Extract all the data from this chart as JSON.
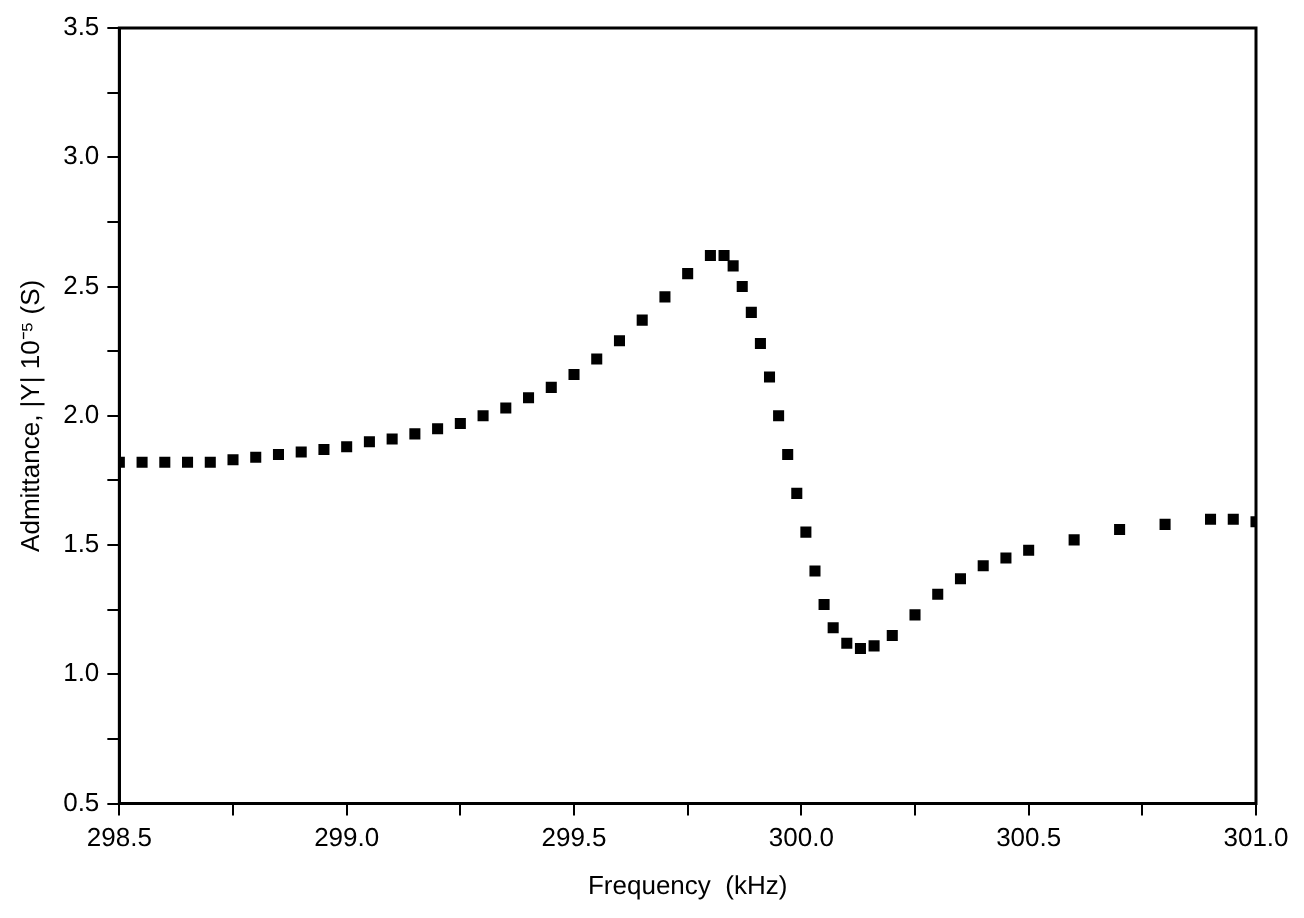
{
  "chart_data": {
    "type": "scatter",
    "xlabel": "Frequency  (kHz)",
    "ylabel": "Admittance, |Y| 10⁻⁵ (S)",
    "marker": "square",
    "grid": false,
    "legend": false,
    "series": [
      {
        "color": "#000000",
        "x": [
          298.5,
          298.55,
          298.6,
          298.65,
          298.7,
          298.75,
          298.8,
          298.85,
          298.9,
          298.95,
          299.0,
          299.05,
          299.1,
          299.15,
          299.2,
          299.25,
          299.3,
          299.35,
          299.4,
          299.45,
          299.5,
          299.55,
          299.6,
          299.65,
          299.7,
          299.75,
          299.8,
          299.83,
          299.85,
          299.87,
          299.89,
          299.91,
          299.93,
          299.95,
          299.97,
          299.99,
          300.01,
          300.03,
          300.05,
          300.07,
          300.1,
          300.13,
          300.16,
          300.2,
          300.25,
          300.3,
          300.35,
          300.4,
          300.45,
          300.5,
          300.6,
          300.7,
          300.8,
          300.9,
          300.95,
          301.0
        ],
        "values": [
          1.82,
          1.82,
          1.82,
          1.82,
          1.82,
          1.83,
          1.84,
          1.85,
          1.86,
          1.87,
          1.88,
          1.9,
          1.91,
          1.93,
          1.95,
          1.97,
          2.0,
          2.03,
          2.07,
          2.11,
          2.16,
          2.22,
          2.29,
          2.37,
          2.46,
          2.55,
          2.62,
          2.62,
          2.58,
          2.5,
          2.4,
          2.28,
          2.15,
          2.0,
          1.85,
          1.7,
          1.55,
          1.4,
          1.27,
          1.18,
          1.12,
          1.1,
          1.11,
          1.15,
          1.23,
          1.31,
          1.37,
          1.42,
          1.45,
          1.48,
          1.52,
          1.56,
          1.58,
          1.6,
          1.6,
          1.59
        ]
      }
    ],
    "xlim": [
      298.5,
      301.0
    ],
    "xticks": [
      {
        "value": 298.5,
        "label": "298.5"
      },
      {
        "value": 298.75,
        "label": null
      },
      {
        "value": 299,
        "label": "299.0"
      },
      {
        "value": 299.25,
        "label": null
      },
      {
        "value": 299.5,
        "label": "299.5"
      },
      {
        "value": 299.75,
        "label": null
      },
      {
        "value": 300,
        "label": "300.0"
      },
      {
        "value": 300.25,
        "label": null
      },
      {
        "value": 300.5,
        "label": "300.5"
      },
      {
        "value": 300.75,
        "label": null
      },
      {
        "value": 301,
        "label": "301.0"
      }
    ],
    "ylim": [
      0.5,
      3.5
    ],
    "yticks": [
      {
        "value": 0.5,
        "label": "0.5"
      },
      {
        "value": 0.75,
        "label": null
      },
      {
        "value": 1,
        "label": "1.0"
      },
      {
        "value": 1.25,
        "label": null
      },
      {
        "value": 1.5,
        "label": "1.5"
      },
      {
        "value": 1.75,
        "label": null
      },
      {
        "value": 2,
        "label": "2.0"
      },
      {
        "value": 2.25,
        "label": null
      },
      {
        "value": 2.5,
        "label": "2.5"
      },
      {
        "value": 2.75,
        "label": null
      },
      {
        "value": 3,
        "label": "3.0"
      },
      {
        "value": 3.25,
        "label": null
      },
      {
        "value": 3.5,
        "label": "3.5"
      }
    ]
  }
}
